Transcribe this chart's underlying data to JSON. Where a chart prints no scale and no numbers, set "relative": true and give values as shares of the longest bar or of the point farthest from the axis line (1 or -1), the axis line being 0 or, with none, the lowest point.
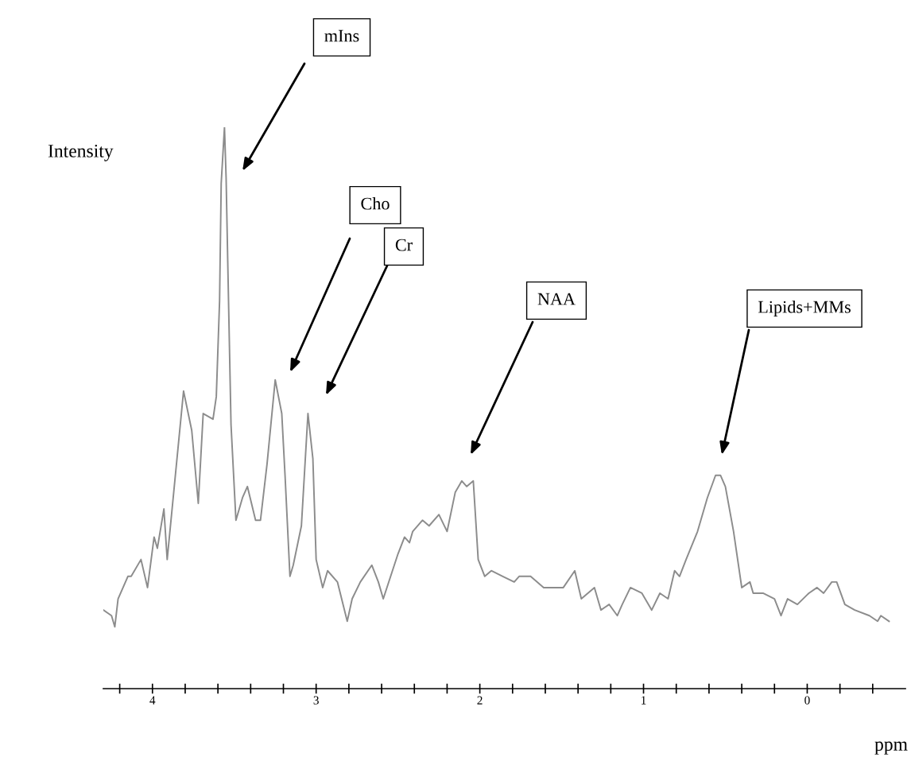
{
  "chart_data": {
    "type": "line",
    "relative": true,
    "xlabel": "ppm",
    "ylabel": "Intensity",
    "xlim": [
      4.3,
      -0.6
    ],
    "xticks": [
      {
        "value": 4.2,
        "label": null
      },
      4,
      {
        "value": 3.8,
        "label": null
      },
      {
        "value": 3.6,
        "label": null
      },
      {
        "value": 3.4,
        "label": null
      },
      {
        "value": 3.2,
        "label": null
      },
      3,
      {
        "value": 2.8,
        "label": null
      },
      {
        "value": 2.6,
        "label": null
      },
      {
        "value": 2.4,
        "label": null
      },
      {
        "value": 2.2,
        "label": null
      },
      2,
      {
        "value": 1.8,
        "label": null
      },
      {
        "value": 1.6,
        "label": null
      },
      {
        "value": 1.4,
        "label": null
      },
      {
        "value": 1.2,
        "label": null
      },
      1,
      {
        "value": 0.8,
        "label": null
      },
      {
        "value": 0.6,
        "label": null
      },
      {
        "value": 0.4,
        "label": null
      },
      {
        "value": 0.2,
        "label": null
      },
      0,
      {
        "value": -0.2,
        "label": null
      },
      {
        "value": -0.4,
        "label": null
      }
    ],
    "tick_labels": "x",
    "grid": false,
    "legend": false,
    "marker": "none",
    "line_style": "solid",
    "series": [
      {
        "color": "#8c8c8c",
        "x": [
          4.3,
          4.25,
          4.23,
          4.21,
          4.15,
          4.13,
          4.07,
          4.03,
          3.99,
          3.97,
          3.93,
          3.91,
          3.86,
          3.81,
          3.76,
          3.72,
          3.69,
          3.63,
          3.61,
          3.59,
          3.58,
          3.56,
          3.55,
          3.54,
          3.52,
          3.49,
          3.45,
          3.42,
          3.37,
          3.34,
          3.3,
          3.25,
          3.21,
          3.19,
          3.16,
          3.14,
          3.09,
          3.05,
          3.02,
          3.0,
          2.96,
          2.93,
          2.87,
          2.81,
          2.78,
          2.73,
          2.66,
          2.62,
          2.59,
          2.5,
          2.46,
          2.43,
          2.41,
          2.35,
          2.31,
          2.25,
          2.2,
          2.15,
          2.11,
          2.08,
          2.04,
          2.01,
          1.97,
          1.93,
          1.86,
          1.79,
          1.76,
          1.69,
          1.61,
          1.49,
          1.42,
          1.38,
          1.3,
          1.26,
          1.21,
          1.16,
          1.13,
          1.08,
          1.01,
          0.95,
          0.9,
          0.85,
          0.81,
          0.78,
          0.74,
          0.67,
          0.61,
          0.56,
          0.53,
          0.5,
          0.45,
          0.4,
          0.35,
          0.33,
          0.27,
          0.2,
          0.16,
          0.12,
          0.06,
          -0.01,
          -0.06,
          -0.1,
          -0.15,
          -0.18,
          -0.23,
          -0.29,
          -0.38,
          -0.43,
          -0.45,
          -0.5
        ],
        "values": [
          0.14,
          0.13,
          0.11,
          0.16,
          0.2,
          0.2,
          0.23,
          0.18,
          0.27,
          0.25,
          0.32,
          0.23,
          0.38,
          0.53,
          0.46,
          0.33,
          0.49,
          0.48,
          0.52,
          0.69,
          0.9,
          1.0,
          0.91,
          0.76,
          0.47,
          0.3,
          0.34,
          0.36,
          0.3,
          0.3,
          0.4,
          0.55,
          0.49,
          0.38,
          0.2,
          0.22,
          0.29,
          0.49,
          0.41,
          0.23,
          0.18,
          0.21,
          0.19,
          0.12,
          0.16,
          0.19,
          0.22,
          0.19,
          0.16,
          0.24,
          0.27,
          0.26,
          0.28,
          0.3,
          0.29,
          0.31,
          0.28,
          0.35,
          0.37,
          0.36,
          0.37,
          0.23,
          0.2,
          0.21,
          0.2,
          0.19,
          0.2,
          0.2,
          0.18,
          0.18,
          0.21,
          0.16,
          0.18,
          0.14,
          0.15,
          0.13,
          0.15,
          0.18,
          0.17,
          0.14,
          0.17,
          0.16,
          0.21,
          0.2,
          0.23,
          0.28,
          0.34,
          0.38,
          0.38,
          0.36,
          0.28,
          0.18,
          0.19,
          0.17,
          0.17,
          0.16,
          0.13,
          0.16,
          0.15,
          0.17,
          0.18,
          0.17,
          0.19,
          0.19,
          0.15,
          0.14,
          0.13,
          0.12,
          0.13,
          0.12
        ]
      }
    ],
    "annotations": [
      "mIns",
      "Cho",
      "Cr",
      "NAA",
      "Lipids+MMs"
    ]
  }
}
